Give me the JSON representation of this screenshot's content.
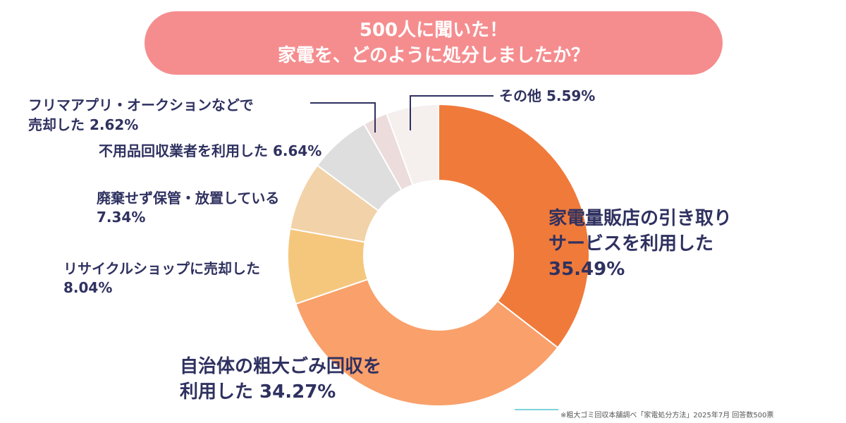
{
  "title_line1": "500人に聞いた！",
  "title_line2": "家電を、どのように処分しましたか？",
  "footnote": "※粗大ゴミ回収本舗調べ「家電処分方法」2025年7月 回答数500票",
  "chart_data": {
    "type": "pie",
    "donut": true,
    "title": "500人に聞いた！ 家電を、どのように処分しましたか？",
    "slices": [
      {
        "label": "家電量販店の引き取りサービスを利用した",
        "value": 35.49,
        "value_text": "35.49%",
        "color": "#f07a3a"
      },
      {
        "label": "自治体の粗大ごみ回収を利用した",
        "value": 34.27,
        "value_text": "34.27%",
        "color": "#f9a06b"
      },
      {
        "label": "リサイクルショップに売却した",
        "value": 8.04,
        "value_text": "8.04%",
        "color": "#f5c77d"
      },
      {
        "label": "廃棄せず保管・放置している",
        "value": 7.34,
        "value_text": "7.34%",
        "color": "#f2d2a8"
      },
      {
        "label": "不用品回収業者を利用した",
        "value": 6.64,
        "value_text": "6.64%",
        "color": "#dedede"
      },
      {
        "label": "フリマアプリ・オークションなどで売却した",
        "value": 2.62,
        "value_text": "2.62%",
        "color": "#ecdcdc"
      },
      {
        "label": "その他",
        "value": 5.59,
        "value_text": "5.59%",
        "color": "#f5efee"
      }
    ]
  },
  "labels": {
    "l0a": "家電量販店の引き取り",
    "l0b": "サービスを利用した",
    "l0c": "35.49%",
    "l1a": "自治体の粗大ごみ回収を",
    "l1b": "利用した 34.27%",
    "l2a": "リサイクルショップに売却した",
    "l2b": "8.04%",
    "l3a": "廃棄せず保管・放置している",
    "l3b": "7.34%",
    "l4a": "不用品回収業者を利用した 6.64%",
    "l5a": "フリマアプリ・オークションなどで",
    "l5b": "売却した 2.62%",
    "l6a": "その他 5.59%"
  }
}
